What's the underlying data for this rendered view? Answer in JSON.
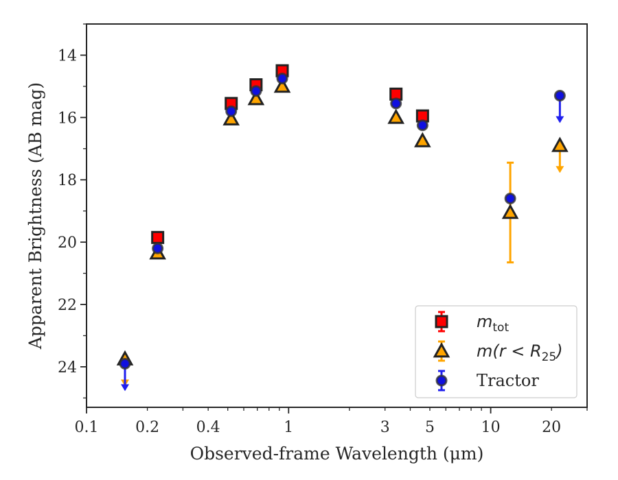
{
  "chart_data": {
    "type": "scatter",
    "xscale": "log",
    "xlim": [
      0.1,
      30
    ],
    "ylim": [
      13,
      25.3
    ],
    "yinverted": true,
    "grid": false,
    "xlabel": "Observed-frame Wavelength (μm)",
    "ylabel": "Apparent Brightness (AB mag)",
    "x_ticks": [
      {
        "value": 0.1,
        "label": "0.1"
      },
      {
        "value": 0.2,
        "label": "0.2"
      },
      {
        "value": 0.4,
        "label": "0.4"
      },
      {
        "value": 1,
        "label": "1"
      },
      {
        "value": 3,
        "label": "3"
      },
      {
        "value": 5,
        "label": "5"
      },
      {
        "value": 10,
        "label": "10"
      },
      {
        "value": 20,
        "label": "20"
      }
    ],
    "y_ticks": [
      {
        "value": 14,
        "label": "14"
      },
      {
        "value": 16,
        "label": "16"
      },
      {
        "value": 18,
        "label": "18"
      },
      {
        "value": 20,
        "label": "20"
      },
      {
        "value": 22,
        "label": "22"
      },
      {
        "value": 24,
        "label": "24"
      }
    ],
    "legend_position": "lower-right",
    "series": [
      {
        "name": "m_tot",
        "legend_label": {
          "main": "m",
          "sub": "tot",
          "rest": ""
        },
        "marker": "square",
        "face_color": "#ff0000",
        "edge_color": "#222222",
        "err_color": "#ff0000",
        "points": [
          {
            "x": 0.225,
            "y": 19.85
          },
          {
            "x": 0.52,
            "y": 15.55
          },
          {
            "x": 0.69,
            "y": 14.95
          },
          {
            "x": 0.93,
            "y": 14.5
          },
          {
            "x": 3.4,
            "y": 15.25
          },
          {
            "x": 4.6,
            "y": 15.95
          }
        ]
      },
      {
        "name": "m(r < R_25)",
        "legend_label": {
          "main": "m(r < R",
          "sub": "25",
          "rest": ")"
        },
        "marker": "triangle",
        "face_color": "#ffa500",
        "edge_color": "#222222",
        "err_color": "#ffa500",
        "points": [
          {
            "x": 0.155,
            "y": 23.75,
            "upper_limit": true
          },
          {
            "x": 0.225,
            "y": 20.35
          },
          {
            "x": 0.52,
            "y": 16.05
          },
          {
            "x": 0.69,
            "y": 15.4
          },
          {
            "x": 0.93,
            "y": 15.0
          },
          {
            "x": 3.4,
            "y": 16.0
          },
          {
            "x": 4.6,
            "y": 16.75
          },
          {
            "x": 12.5,
            "y": 19.05,
            "yerr": 1.6
          },
          {
            "x": 22,
            "y": 16.9,
            "upper_limit": true
          }
        ]
      },
      {
        "name": "Tractor",
        "legend_label": {
          "main": "Tractor",
          "sub": "",
          "rest": ""
        },
        "marker": "circle",
        "face_color": "#1010e0",
        "edge_color": "#333333",
        "err_color": "#2020ee",
        "points": [
          {
            "x": 0.155,
            "y": 23.9,
            "upper_limit": true
          },
          {
            "x": 0.225,
            "y": 20.2
          },
          {
            "x": 0.52,
            "y": 15.8
          },
          {
            "x": 0.69,
            "y": 15.15
          },
          {
            "x": 0.93,
            "y": 14.75
          },
          {
            "x": 3.4,
            "y": 15.55
          },
          {
            "x": 4.6,
            "y": 16.25
          },
          {
            "x": 12.5,
            "y": 18.6
          },
          {
            "x": 22,
            "y": 15.3,
            "upper_limit": true
          }
        ]
      }
    ]
  }
}
